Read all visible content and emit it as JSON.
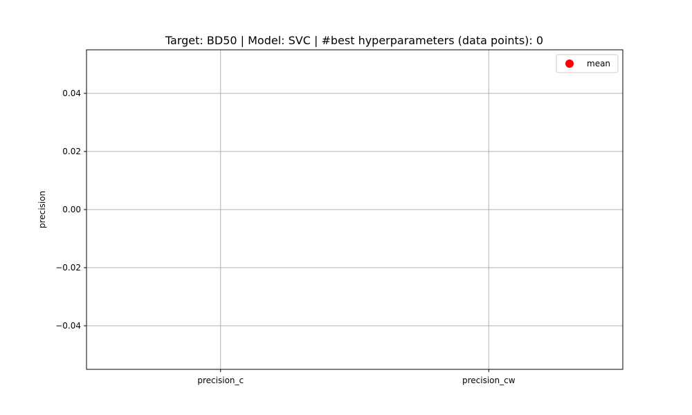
{
  "chart_data": {
    "type": "scatter",
    "title": "Target: BD50 | Model: SVC | #best hyperparameters (data points): 0",
    "xlabel": "",
    "ylabel": "precision",
    "categories": [
      "precision_c",
      "precision_cw"
    ],
    "ylim": [
      -0.055,
      0.055
    ],
    "yticks": [
      0.04,
      0.02,
      0.0,
      -0.02,
      -0.04
    ],
    "ytick_labels": [
      "0.04",
      "0.02",
      "0.00",
      "−0.02",
      "−0.04"
    ],
    "grid": true,
    "legend_position": "top-right",
    "series": [
      {
        "name": "mean",
        "marker": "circle",
        "color": "#ff0000",
        "values": []
      }
    ]
  },
  "colors": {
    "grid": "#b0b0b0",
    "axes": "#000000",
    "mean_marker": "#ff0000"
  }
}
